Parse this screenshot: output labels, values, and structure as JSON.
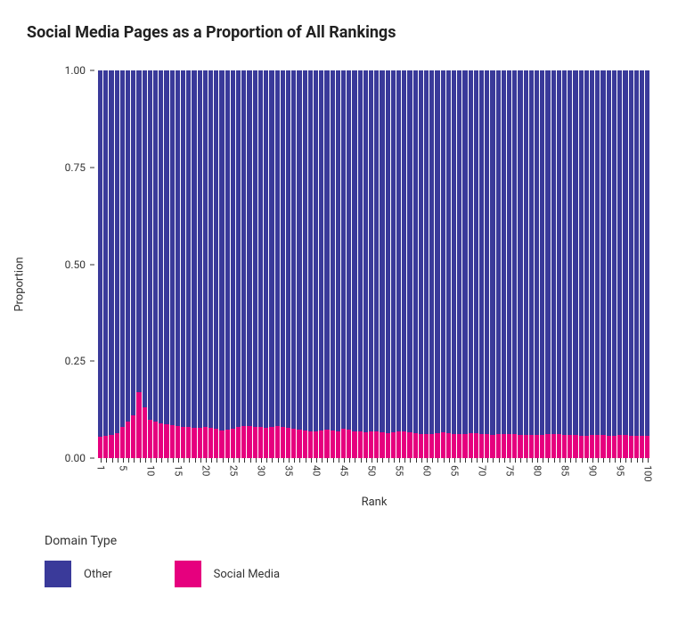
{
  "chart": {
    "type": "stacked-bar",
    "title": "Social Media Pages as a Proportion of All Rankings",
    "title_fontsize": 18,
    "xlabel": "Rank",
    "ylabel": "Proportion",
    "label_fontsize": 13,
    "tick_fontsize": 12,
    "background_color": "#ffffff",
    "plot_background_color": "#ededf3",
    "bar_gap_color": "#ffffff",
    "ylim": [
      0,
      1
    ],
    "yticks": [
      0.0,
      0.25,
      0.5,
      0.75,
      1.0
    ],
    "ytick_labels": [
      "0.00",
      "0.25",
      "0.50",
      "0.75",
      "1.00"
    ],
    "x_start": 1,
    "x_end": 100,
    "xtick_step_major": 5,
    "series_order": [
      "social_media",
      "other"
    ],
    "series": {
      "other": {
        "label": "Other",
        "color": "#3a3a9a"
      },
      "social_media": {
        "label": "Social Media",
        "color": "#e6007e"
      }
    },
    "legend_title": "Domain Type",
    "legend_swatch_size": 30,
    "social_media_values": [
      0.055,
      0.057,
      0.06,
      0.065,
      0.08,
      0.095,
      0.11,
      0.17,
      0.13,
      0.1,
      0.095,
      0.09,
      0.088,
      0.085,
      0.082,
      0.08,
      0.08,
      0.078,
      0.078,
      0.08,
      0.078,
      0.075,
      0.072,
      0.073,
      0.075,
      0.08,
      0.083,
      0.082,
      0.08,
      0.08,
      0.078,
      0.08,
      0.082,
      0.08,
      0.078,
      0.075,
      0.073,
      0.072,
      0.07,
      0.07,
      0.072,
      0.073,
      0.072,
      0.07,
      0.075,
      0.073,
      0.07,
      0.068,
      0.067,
      0.068,
      0.068,
      0.067,
      0.065,
      0.067,
      0.068,
      0.068,
      0.067,
      0.065,
      0.063,
      0.062,
      0.063,
      0.065,
      0.067,
      0.065,
      0.063,
      0.062,
      0.063,
      0.064,
      0.065,
      0.063,
      0.062,
      0.06,
      0.062,
      0.063,
      0.063,
      0.062,
      0.06,
      0.06,
      0.06,
      0.06,
      0.06,
      0.062,
      0.063,
      0.062,
      0.06,
      0.06,
      0.06,
      0.058,
      0.058,
      0.06,
      0.06,
      0.06,
      0.058,
      0.058,
      0.06,
      0.06,
      0.058,
      0.058,
      0.058,
      0.058
    ]
  }
}
